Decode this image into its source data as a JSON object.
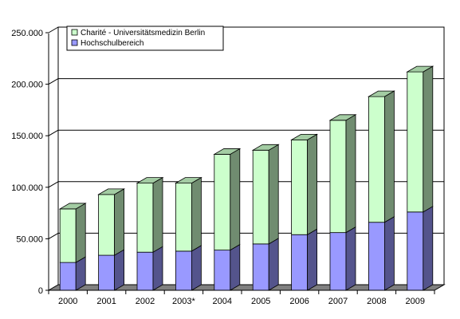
{
  "chart_data": {
    "type": "bar",
    "stacked": true,
    "three_d": true,
    "title": "",
    "xlabel": "",
    "ylabel": "",
    "categories": [
      "2000",
      "2001",
      "2002",
      "2003*",
      "2004",
      "2005",
      "2006",
      "2007",
      "2008",
      "2009"
    ],
    "y_ticks": [
      "0",
      "50.000",
      "100.000",
      "150.000",
      "200.000",
      "250.000"
    ],
    "ylim": [
      0,
      250000
    ],
    "grid": true,
    "legend_position": "top-left",
    "series": [
      {
        "name": "Hochschulbereich",
        "color": "#9999ff",
        "values": [
          27000,
          34000,
          37000,
          38000,
          39000,
          45000,
          54000,
          56000,
          66000,
          76000
        ]
      },
      {
        "name": "Charité - Universitätsmedizin Berlin",
        "color": "#ccffcc",
        "values": [
          52000,
          59000,
          67000,
          66000,
          93000,
          91000,
          92000,
          109000,
          122000,
          136000
        ]
      }
    ]
  }
}
